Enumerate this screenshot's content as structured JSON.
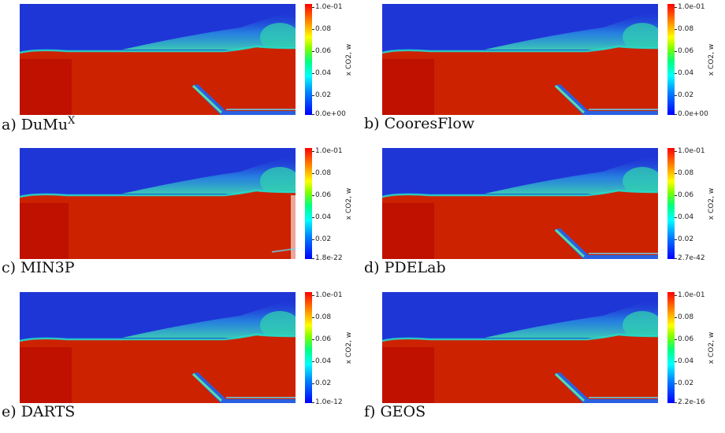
{
  "colors": {
    "water": "#1f36d6",
    "co2": "#cc2200",
    "co2_dark": "#c01000",
    "interface": "#20e0d0"
  },
  "panels": [
    {
      "caption_prefix": "a) ",
      "caption": "DuMu",
      "caption_sup": "X",
      "colorbar_title": "x CO2, w",
      "ticks": [
        "1.0e-01",
        "0.08",
        "0.06",
        "0.04",
        "0.02",
        "0.0e+00"
      ]
    },
    {
      "caption_prefix": "b) ",
      "caption": "CooresFlow",
      "caption_sup": "",
      "colorbar_title": "x CO2, w",
      "ticks": [
        "1.0e-01",
        "0.08",
        "0.06",
        "0.04",
        "0.02",
        "0.0e+00"
      ]
    },
    {
      "caption_prefix": "c) ",
      "caption": "MIN3P",
      "caption_sup": "",
      "colorbar_title": "x CO2, w",
      "ticks": [
        "1.0e-01",
        "0.08",
        "0.06",
        "0.04",
        "0.02",
        "1.8e-22"
      ]
    },
    {
      "caption_prefix": "d) ",
      "caption": "PDELab",
      "caption_sup": "",
      "colorbar_title": "x CO2, w",
      "ticks": [
        "1.0e-01",
        "0.08",
        "0.06",
        "0.04",
        "0.02",
        "2.7e-42"
      ]
    },
    {
      "caption_prefix": "e) ",
      "caption": "DARTS",
      "caption_sup": "",
      "colorbar_title": "x CO2, w",
      "ticks": [
        "1.0e-01",
        "0.08",
        "0.06",
        "0.04",
        "0.02",
        "1.0e-12"
      ]
    },
    {
      "caption_prefix": "f) ",
      "caption": "GEOS",
      "caption_sup": "",
      "colorbar_title": "x CO2, w",
      "ticks": [
        "1.0e-01",
        "0.08",
        "0.06",
        "0.04",
        "0.02",
        "2.2e-16"
      ]
    }
  ]
}
